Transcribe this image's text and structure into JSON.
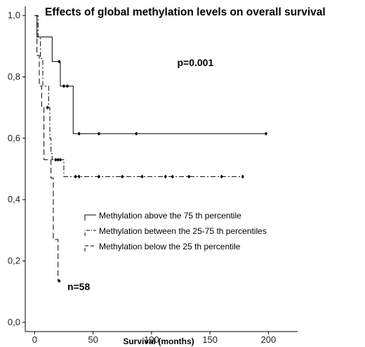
{
  "chart_data": {
    "type": "line",
    "step": true,
    "title": "Effects of global methylation levels on overall survival",
    "xlabel": "Survival (months)",
    "ylabel": "",
    "xlim": [
      -8,
      225
    ],
    "ylim": [
      -0.03,
      1.03
    ],
    "x_ticks": [
      0,
      50,
      100,
      150,
      200
    ],
    "y_ticks": [
      0.0,
      0.2,
      0.4,
      0.6,
      0.8,
      1.0
    ],
    "x_tick_labels": [
      "0",
      "50",
      "100",
      "150",
      "200"
    ],
    "y_tick_labels": [
      "0,0",
      "0,2",
      "0,4",
      "0,6",
      "0,8",
      "1,0"
    ],
    "grid": false,
    "legend_position": "center-right",
    "annotations": [
      {
        "text": "p=0.001",
        "x": 122,
        "y": 0.835
      },
      {
        "text": "n=58",
        "x": 28,
        "y": 0.105
      }
    ],
    "series": [
      {
        "name": "Methylation above the 75 th percentile",
        "dash": "solid",
        "steps": [
          [
            0,
            1.0
          ],
          [
            2,
            0.93
          ],
          [
            15,
            0.85
          ],
          [
            22,
            0.77
          ],
          [
            33,
            0.615
          ],
          [
            198,
            0.615
          ]
        ],
        "censored": [
          [
            21,
            0.85
          ],
          [
            25,
            0.77
          ],
          [
            28,
            0.77
          ],
          [
            38,
            0.615
          ],
          [
            55,
            0.615
          ],
          [
            87,
            0.615
          ],
          [
            198,
            0.615
          ]
        ]
      },
      {
        "name": "Methylation between the 25-75 th percentiles",
        "dash": "dashdot",
        "steps": [
          [
            0,
            1.0
          ],
          [
            3,
            0.93
          ],
          [
            5,
            0.86
          ],
          [
            7,
            0.77
          ],
          [
            12,
            0.7
          ],
          [
            13,
            0.6
          ],
          [
            14,
            0.55
          ],
          [
            15,
            0.53
          ],
          [
            25,
            0.475
          ],
          [
            178,
            0.475
          ]
        ],
        "censored": [
          [
            18,
            0.53
          ],
          [
            20,
            0.53
          ],
          [
            22,
            0.53
          ],
          [
            35,
            0.475
          ],
          [
            38,
            0.475
          ],
          [
            55,
            0.475
          ],
          [
            75,
            0.475
          ],
          [
            92,
            0.475
          ],
          [
            112,
            0.475
          ],
          [
            118,
            0.475
          ],
          [
            132,
            0.475
          ],
          [
            160,
            0.475
          ],
          [
            178,
            0.475
          ]
        ]
      },
      {
        "name": "Methylation below the 25 th percentile",
        "dash": "dashed",
        "steps": [
          [
            0,
            1.0
          ],
          [
            2,
            0.87
          ],
          [
            4,
            0.77
          ],
          [
            6,
            0.7
          ],
          [
            8,
            0.53
          ],
          [
            14,
            0.47
          ],
          [
            16,
            0.27
          ],
          [
            20,
            0.135
          ],
          [
            21,
            0.135
          ]
        ],
        "censored": [
          [
            11,
            0.7
          ],
          [
            21,
            0.135
          ]
        ]
      }
    ]
  }
}
